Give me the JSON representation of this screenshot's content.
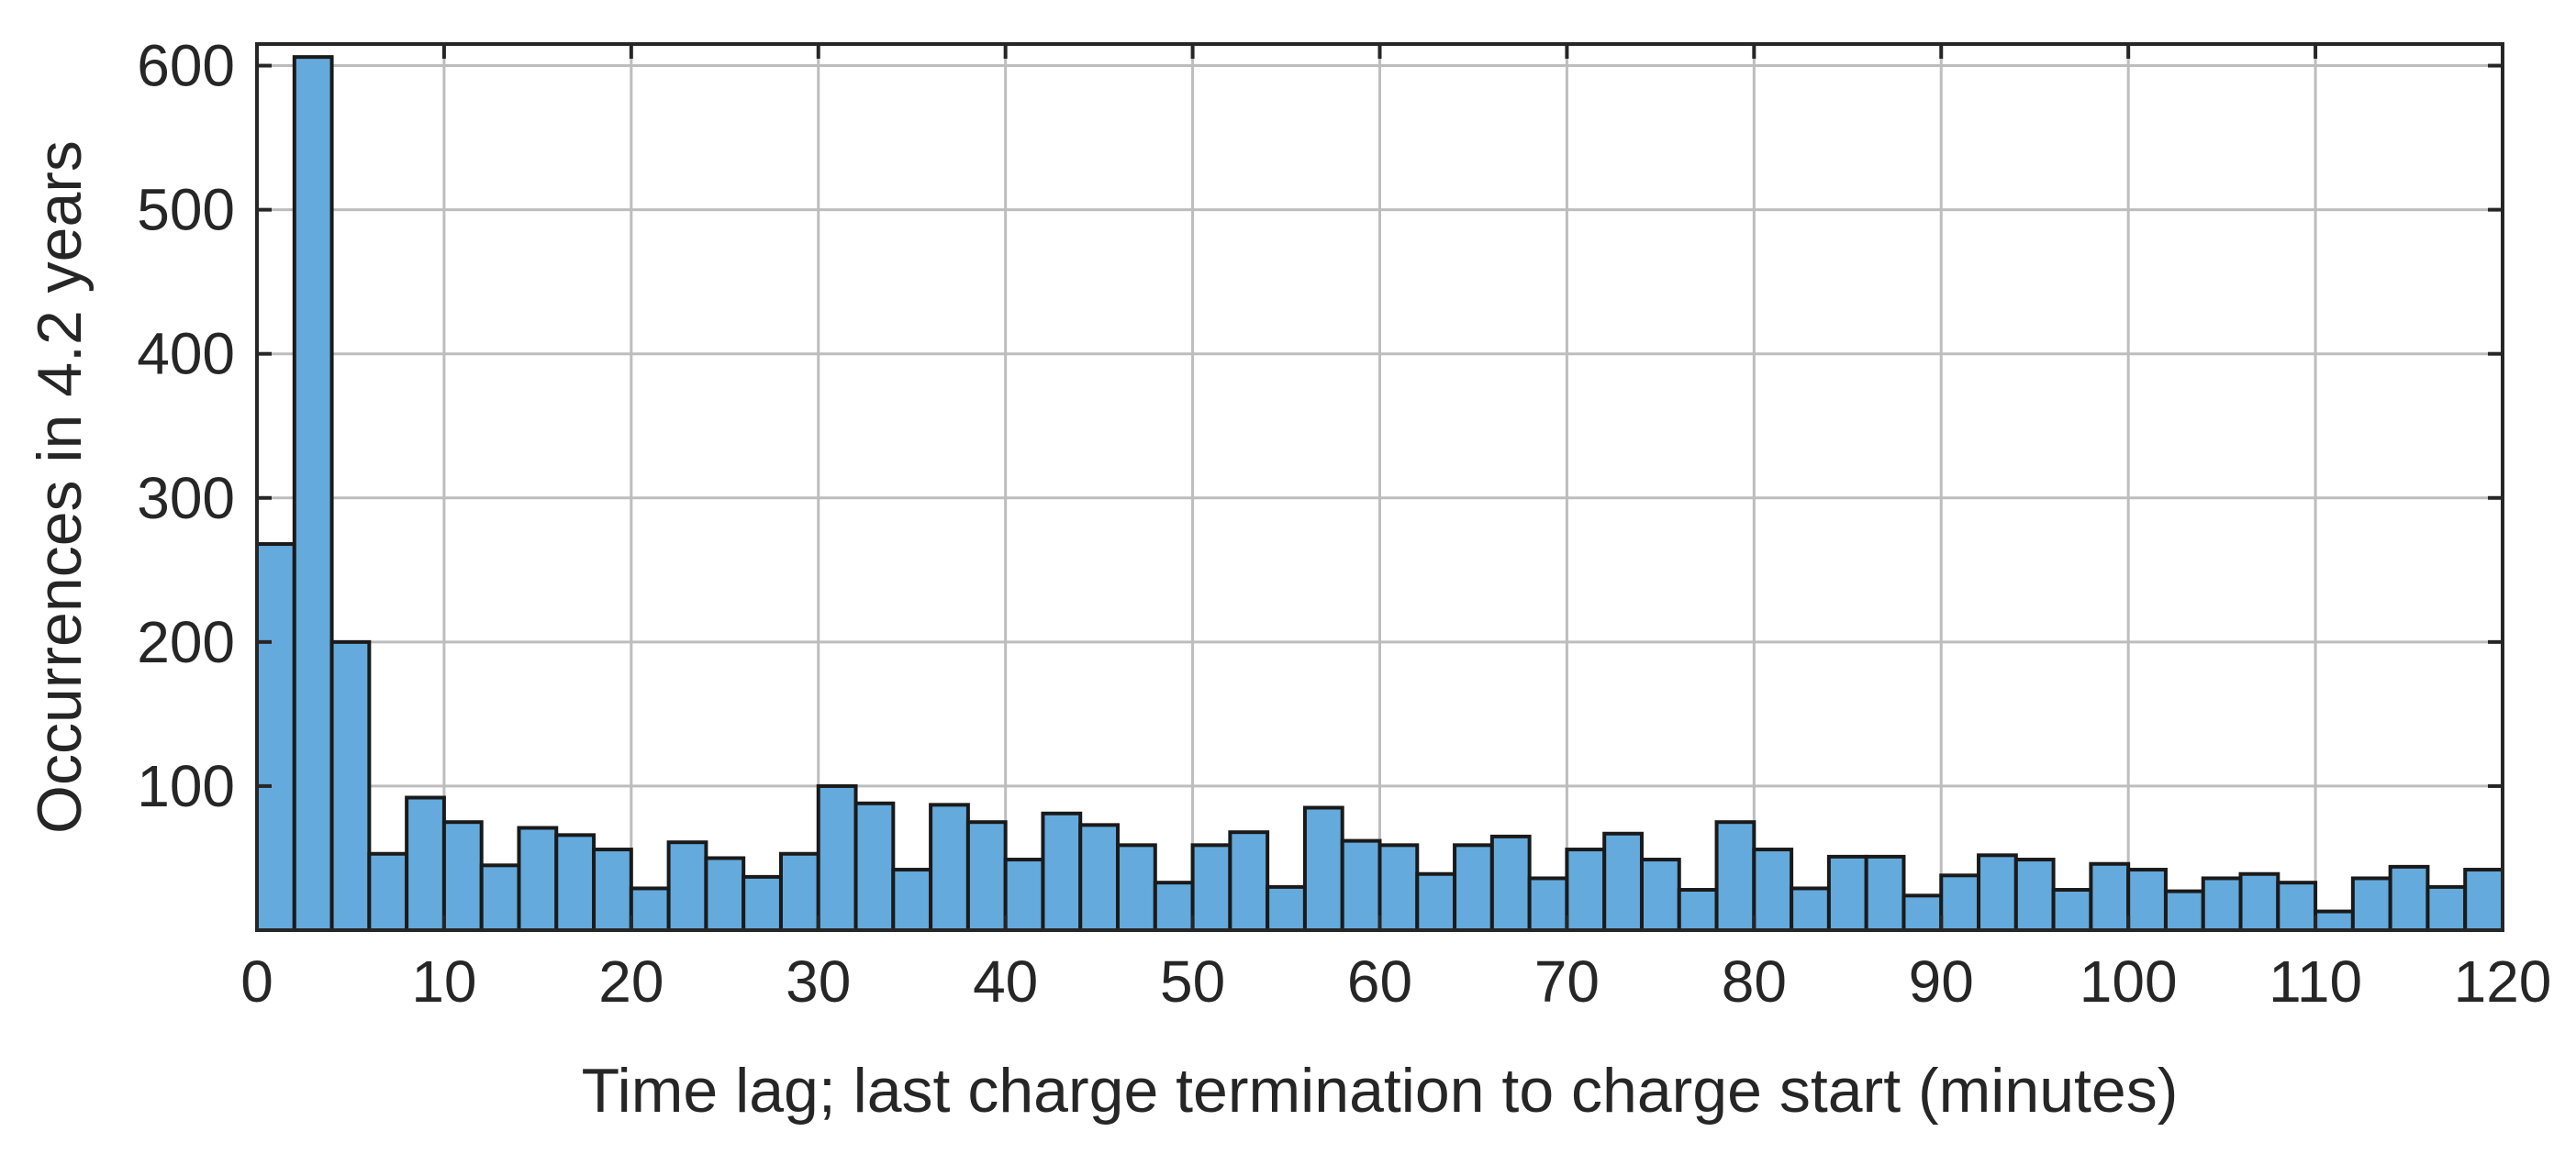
{
  "chart_data": {
    "type": "bar",
    "title": "",
    "xlabel": "Time lag; last charge termination to charge start (minutes)",
    "ylabel": "Occurrences in 4.2 years",
    "xlim": [
      0,
      120
    ],
    "ylim": [
      0,
      615
    ],
    "bin_width": 2,
    "x_bin_starts": [
      0,
      2,
      4,
      6,
      8,
      10,
      12,
      14,
      16,
      18,
      20,
      22,
      24,
      26,
      28,
      30,
      32,
      34,
      36,
      38,
      40,
      42,
      44,
      46,
      48,
      50,
      52,
      54,
      56,
      58,
      60,
      62,
      64,
      66,
      68,
      70,
      72,
      74,
      76,
      78,
      80,
      82,
      84,
      86,
      88,
      90,
      92,
      94,
      96,
      98,
      100,
      102,
      104,
      106,
      108,
      110,
      112,
      114,
      116,
      118
    ],
    "values": [
      268,
      606,
      200,
      53,
      92,
      75,
      45,
      71,
      66,
      56,
      29,
      61,
      50,
      37,
      53,
      100,
      88,
      42,
      87,
      75,
      49,
      81,
      73,
      59,
      33,
      59,
      68,
      30,
      85,
      62,
      59,
      39,
      59,
      65,
      36,
      56,
      67,
      49,
      28,
      75,
      56,
      29,
      51,
      51,
      24,
      38,
      52,
      49,
      28,
      46,
      42,
      27,
      36,
      39,
      33,
      13,
      36,
      44,
      30,
      42
    ],
    "x_ticks": [
      "0",
      "10",
      "20",
      "30",
      "40",
      "50",
      "60",
      "70",
      "80",
      "90",
      "100",
      "110",
      "120"
    ],
    "y_ticks": [
      "100",
      "200",
      "300",
      "400",
      "500",
      "600"
    ],
    "grid": true,
    "colors": {
      "bar_fill": "#64aadc",
      "bar_edge": "#1a1a1a",
      "grid": "#bdbdbd",
      "axis": "#262626"
    }
  }
}
